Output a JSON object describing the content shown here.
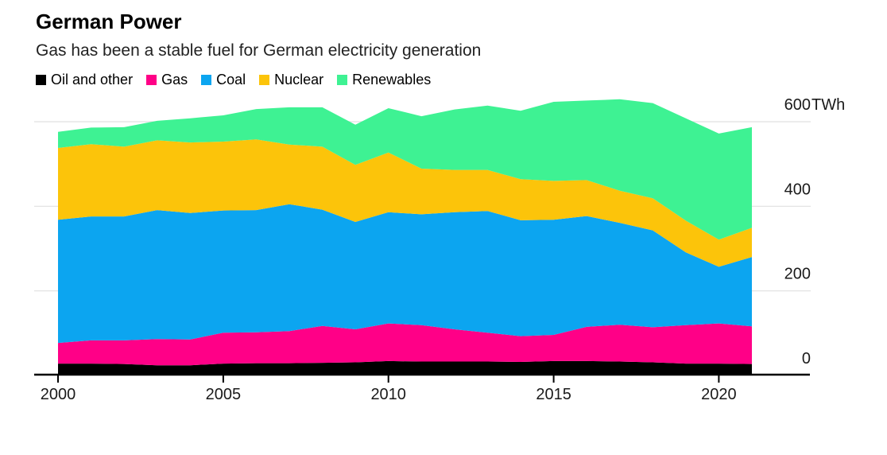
{
  "chart_data": {
    "type": "area",
    "stacked": true,
    "title": "German Power",
    "subtitle": "Gas has been a stable fuel for German electricity generation",
    "unit": "TWh",
    "x": [
      2000,
      2001,
      2002,
      2003,
      2004,
      2005,
      2006,
      2007,
      2008,
      2009,
      2010,
      2011,
      2012,
      2013,
      2014,
      2015,
      2016,
      2017,
      2018,
      2019,
      2020,
      2021
    ],
    "series": [
      {
        "name": "Oil and other",
        "color": "#000000",
        "values": [
          28,
          28,
          27,
          24,
          24,
          28,
          29,
          29,
          30,
          31,
          34,
          33,
          33,
          33,
          32,
          34,
          34,
          33,
          31,
          28,
          28,
          27
        ]
      },
      {
        "name": "Gas",
        "color": "#ff0087",
        "values": [
          49,
          55,
          56,
          62,
          61,
          73,
          73,
          76,
          87,
          78,
          89,
          86,
          76,
          68,
          61,
          62,
          81,
          87,
          83,
          91,
          95,
          89
        ]
      },
      {
        "name": "Coal",
        "color": "#0ca5f0",
        "values": [
          291,
          293,
          293,
          305,
          299,
          289,
          289,
          300,
          275,
          254,
          263,
          262,
          277,
          288,
          274,
          272,
          262,
          241,
          229,
          172,
          134,
          164
        ]
      },
      {
        "name": "Nuclear",
        "color": "#fcc40a",
        "values": [
          170,
          171,
          165,
          165,
          167,
          163,
          167,
          141,
          149,
          135,
          141,
          108,
          100,
          97,
          97,
          92,
          85,
          76,
          76,
          75,
          64,
          69
        ]
      },
      {
        "name": "Renewables",
        "color": "#3ef293",
        "values": [
          38,
          39,
          46,
          46,
          57,
          62,
          72,
          88,
          93,
          95,
          105,
          124,
          143,
          152,
          162,
          187,
          188,
          216,
          225,
          242,
          251,
          238
        ]
      }
    ],
    "x_axis": {
      "ticks": [
        2000,
        2005,
        2010,
        2015,
        2020
      ],
      "range": [
        2000,
        2021
      ]
    },
    "y_axis": {
      "ticks": [
        0,
        200,
        400,
        600
      ],
      "range": [
        0,
        600
      ],
      "unit_suffix": "TWh",
      "position": "right"
    },
    "legend_position": "top",
    "grid": "horizontal",
    "colors": {
      "background": "#ffffff",
      "grid": "#e0e0e0",
      "axis": "#000000",
      "tick_text": "#1a1a1a"
    }
  }
}
